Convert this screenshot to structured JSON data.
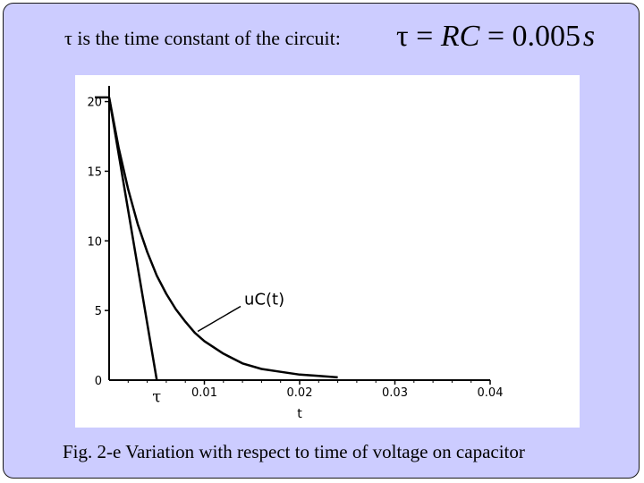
{
  "header": {
    "intro_text": "τ is the time constant of the circuit:",
    "formula": {
      "tau": "τ",
      "eq1": " = ",
      "rc": "RC",
      "eq2": " = ",
      "value": "0.005",
      "unit": "s"
    }
  },
  "caption": "Fig. 2-e Variation with respect to time of voltage on capacitor",
  "chart_data": {
    "type": "line",
    "title": "",
    "xlabel": "t",
    "ylabel": "",
    "xlim": [
      0,
      0.04
    ],
    "ylim": [
      0,
      21
    ],
    "x_ticks": [
      {
        "value": 0.01,
        "label": "0.01"
      },
      {
        "value": 0.02,
        "label": "0.02"
      },
      {
        "value": 0.03,
        "label": "0.03"
      },
      {
        "value": 0.04,
        "label": "0.04"
      }
    ],
    "y_ticks": [
      {
        "value": 0,
        "label": "0"
      },
      {
        "value": 5,
        "label": "5"
      },
      {
        "value": 10,
        "label": "10"
      },
      {
        "value": 15,
        "label": "15"
      },
      {
        "value": 20,
        "label": "20"
      }
    ],
    "series": [
      {
        "name": "uC(t)",
        "x": [
          0,
          0.001,
          0.002,
          0.003,
          0.004,
          0.005,
          0.006,
          0.007,
          0.008,
          0.009,
          0.01,
          0.012,
          0.014,
          0.016,
          0.018,
          0.02,
          0.022,
          0.024
        ],
        "y": [
          20.3,
          16.7,
          13.7,
          11.2,
          9.2,
          7.5,
          6.2,
          5.1,
          4.2,
          3.4,
          2.8,
          1.9,
          1.2,
          0.8,
          0.6,
          0.4,
          0.3,
          0.2
        ]
      },
      {
        "name": "tangent",
        "x": [
          0,
          0.005
        ],
        "y": [
          20.3,
          0
        ]
      },
      {
        "name": "initial level",
        "x": [
          -0.0015,
          0
        ],
        "y": [
          20.3,
          20.3
        ]
      }
    ],
    "annotations": [
      {
        "label": "uC(t)",
        "target_x": 0.0093,
        "target_y": 3.5
      },
      {
        "label": "τ",
        "x": 0.005
      }
    ],
    "grid": false,
    "legend": "none"
  }
}
